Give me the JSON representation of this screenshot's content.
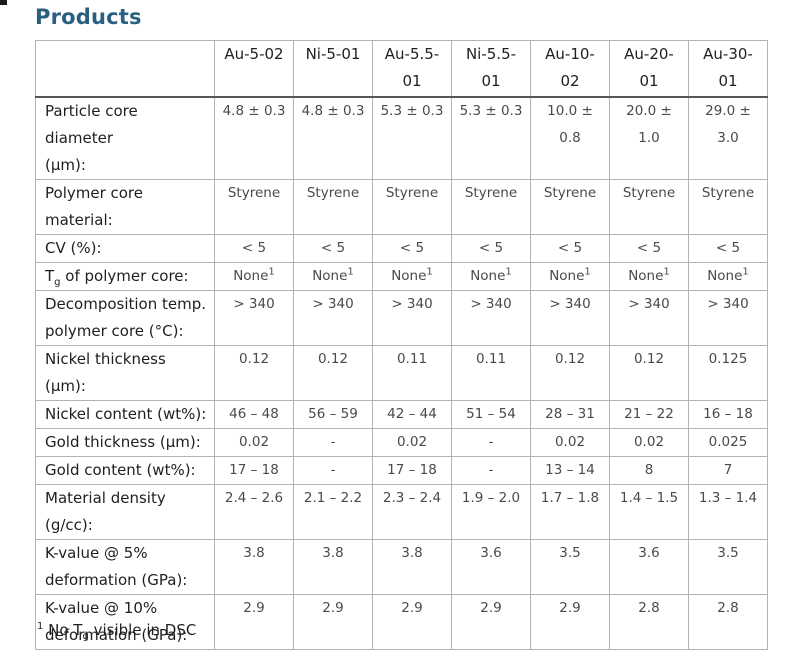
{
  "page": {
    "title": "Products",
    "footnote": "^1^ No T~g~ visible in DSC"
  },
  "colors": {
    "title": "#2a5f80",
    "border_light": "#b3b3b3",
    "border_header_bottom": "#555555",
    "label_text": "#1f1f1f",
    "value_text": "#4a4a4a"
  },
  "table": {
    "corner_header": "",
    "columns": [
      "Au-5-02",
      "Ni-5-01",
      "Au-5.5-\n01",
      "Ni-5.5-\n01",
      "Au-10-\n02",
      "Au-20-\n01",
      "Au-30-\n01"
    ],
    "rows": [
      {
        "label": "Particle core diameter\n(µm):",
        "values": [
          "4.8 ± 0.3",
          "4.8 ± 0.3",
          "5.3 ± 0.3",
          "5.3 ± 0.3",
          "10.0 ±\n0.8",
          "20.0 ±\n1.0",
          "29.0 ±\n3.0"
        ]
      },
      {
        "label": "Polymer core\nmaterial:",
        "values": [
          "Styrene",
          "Styrene",
          "Styrene",
          "Styrene",
          "Styrene",
          "Styrene",
          "Styrene"
        ]
      },
      {
        "label": "CV (%):",
        "values": [
          "< 5",
          "< 5",
          "< 5",
          "< 5",
          "< 5",
          "< 5",
          "< 5"
        ]
      },
      {
        "label": "T~g~ of polymer core:",
        "values": [
          "None^1^",
          "None^1^",
          "None^1^",
          "None^1^",
          "None^1^",
          "None^1^",
          "None^1^"
        ]
      },
      {
        "label": "Decomposition temp.\npolymer core (°C):",
        "values": [
          "> 340",
          "> 340",
          "> 340",
          "> 340",
          "> 340",
          "> 340",
          "> 340"
        ]
      },
      {
        "label": "Nickel thickness (µm):",
        "values": [
          "0.12",
          "0.12",
          "0.11",
          "0.11",
          "0.12",
          "0.12",
          "0.125"
        ]
      },
      {
        "label": "Nickel content (wt%):",
        "values": [
          "46 – 48",
          "56 – 59",
          "42 – 44",
          "51 – 54",
          "28 – 31",
          "21 – 22",
          "16 – 18"
        ]
      },
      {
        "label": "Gold thickness (µm):",
        "values": [
          "0.02",
          "-",
          "0.02",
          "-",
          "0.02",
          "0.02",
          "0.025"
        ]
      },
      {
        "label": "Gold content (wt%):",
        "values": [
          "17 – 18",
          "-",
          "17 – 18",
          "-",
          "13 – 14",
          "8",
          "7"
        ]
      },
      {
        "label": "Material density\n(g/cc):",
        "values": [
          "2.4 – 2.6",
          "2.1 – 2.2",
          "2.3 – 2.4",
          "1.9 – 2.0",
          "1.7 – 1.8",
          "1.4 – 1.5",
          "1.3 – 1.4"
        ]
      },
      {
        "label": "K-value @ 5%\ndeformation (GPa):",
        "values": [
          "3.8",
          "3.8",
          "3.8",
          "3.6",
          "3.5",
          "3.6",
          "3.5"
        ]
      },
      {
        "label": "K-value @ 10%\ndeformation (GPa):",
        "values": [
          "2.9",
          "2.9",
          "2.9",
          "2.9",
          "2.9",
          "2.8",
          "2.8"
        ]
      }
    ]
  }
}
